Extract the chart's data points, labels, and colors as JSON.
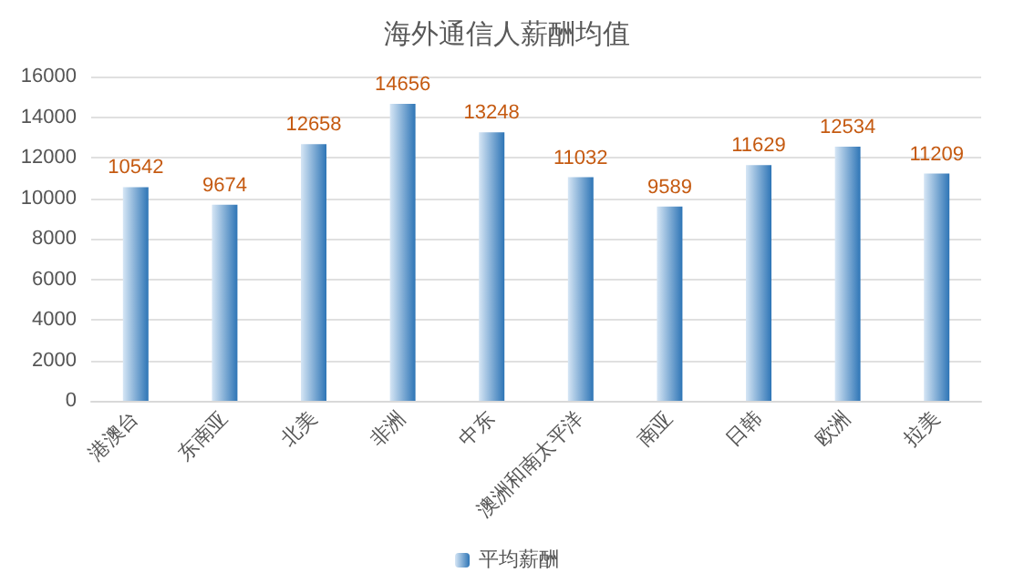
{
  "chart_data": {
    "type": "bar",
    "title": "海外通信人薪酬均值",
    "categories": [
      "港澳台",
      "东南亚",
      "北美",
      "非洲",
      "中东",
      "澳洲和南太平洋",
      "南亚",
      "日韩",
      "欧洲",
      "拉美"
    ],
    "series": [
      {
        "name": "平均薪酬",
        "color": "#2e75b6",
        "values": [
          10542,
          9674,
          12658,
          14656,
          13248,
          11032,
          9589,
          11629,
          12534,
          11209
        ]
      }
    ],
    "ylim": [
      0,
      16000
    ],
    "yticks": [
      0,
      2000,
      4000,
      6000,
      8000,
      10000,
      12000,
      14000,
      16000
    ],
    "grid": "y",
    "legend": "bottom",
    "data_labels": true
  }
}
